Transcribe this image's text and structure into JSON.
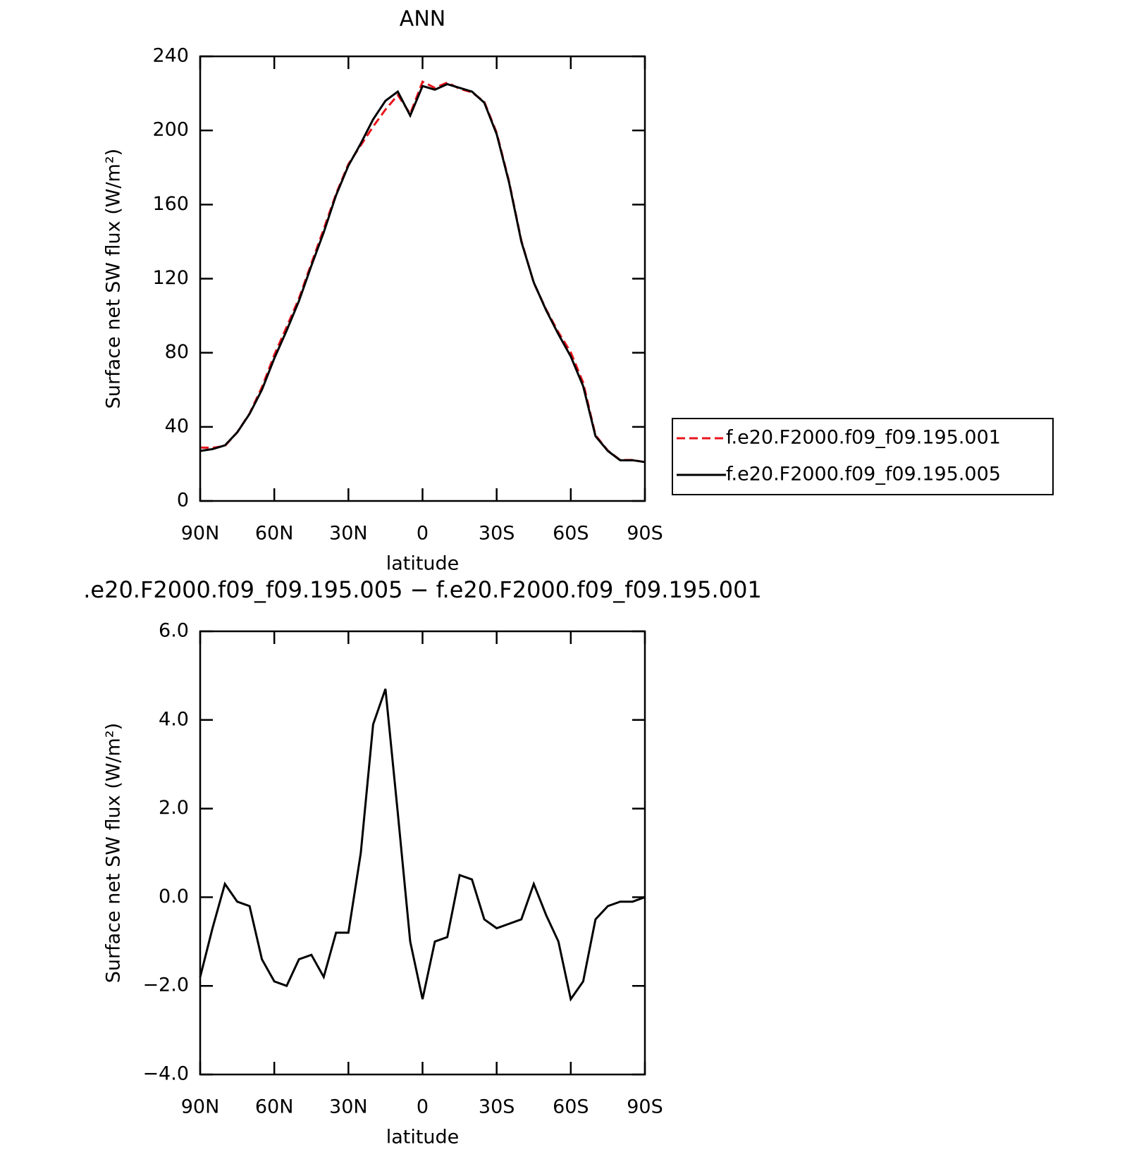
{
  "chart_data": [
    {
      "type": "line",
      "title": "ANN",
      "xlabel": "latitude",
      "ylabel": "Surface net SW flux (W/m²)",
      "x": [
        90,
        85,
        80,
        75,
        70,
        65,
        60,
        55,
        50,
        45,
        40,
        35,
        30,
        25,
        20,
        15,
        10,
        5,
        0,
        -5,
        -10,
        -15,
        -20,
        -25,
        -30,
        -35,
        -40,
        -45,
        -50,
        -55,
        -60,
        -65,
        -70,
        -75,
        -80,
        -85,
        -90
      ],
      "xlim": [
        90,
        -90
      ],
      "xticks": [
        {
          "value": 90,
          "label": "90N"
        },
        {
          "value": 60,
          "label": "60N"
        },
        {
          "value": 30,
          "label": "30N"
        },
        0,
        {
          "value": -30,
          "label": "30S"
        },
        {
          "value": -60,
          "label": "60S"
        },
        {
          "value": -90,
          "label": "90S"
        }
      ],
      "ylim": [
        0,
        240
      ],
      "yticks": [
        0,
        40,
        80,
        120,
        160,
        200,
        240
      ],
      "legend": "outside-right",
      "series": [
        {
          "name": "f.e20.F2000.f09_f09.195.001",
          "color": "#e8141c",
          "style": "dashed",
          "values": [
            28.8,
            28.7,
            29.7,
            37.1,
            47.2,
            61.4,
            78.9,
            94.0,
            109.4,
            128.3,
            146.8,
            165.8,
            181.8,
            192.0,
            202.1,
            211.3,
            219.1,
            209.0,
            226.3,
            223.0,
            225.9,
            222.5,
            220.6,
            215.5,
            198.7,
            172.6,
            140.5,
            117.7,
            103.4,
            91.0,
            80.3,
            63.9,
            35.5,
            27.2,
            22.1,
            22.1,
            21.0
          ]
        },
        {
          "name": "f.e20.F2000.f09_f09.195.005",
          "color": "#000000",
          "style": "solid",
          "values": [
            27,
            28,
            30,
            37,
            47,
            60,
            77,
            92,
            108,
            127,
            145,
            165,
            181,
            193,
            206,
            216,
            221,
            208,
            224,
            222,
            225,
            223,
            221,
            215,
            198,
            172,
            140,
            118,
            103,
            90,
            78,
            62,
            35,
            27,
            22,
            22,
            21
          ]
        }
      ]
    },
    {
      "type": "line",
      "title": ".e20.F2000.f09_f09.195.005 − f.e20.F2000.f09_f09.195.001",
      "xlabel": "latitude",
      "ylabel": "Surface net SW flux (W/m²)",
      "x": [
        90,
        85,
        80,
        75,
        70,
        65,
        60,
        55,
        50,
        45,
        40,
        35,
        30,
        25,
        20,
        15,
        10,
        5,
        0,
        -5,
        -10,
        -15,
        -20,
        -25,
        -30,
        -35,
        -40,
        -45,
        -50,
        -55,
        -60,
        -65,
        -70,
        -75,
        -80,
        -85,
        -90
      ],
      "xlim": [
        90,
        -90
      ],
      "xticks": [
        {
          "value": 90,
          "label": "90N"
        },
        {
          "value": 60,
          "label": "60N"
        },
        {
          "value": 30,
          "label": "30N"
        },
        0,
        {
          "value": -30,
          "label": "30S"
        },
        {
          "value": -60,
          "label": "60S"
        },
        {
          "value": -90,
          "label": "90S"
        }
      ],
      "ylim": [
        -4,
        6
      ],
      "yticks": [
        {
          "value": -4,
          "label": "−4.0"
        },
        {
          "value": -2,
          "label": "−2.0"
        },
        {
          "value": 0,
          "label": "0.0"
        },
        {
          "value": 2,
          "label": "2.0"
        },
        {
          "value": 4,
          "label": "4.0"
        },
        {
          "value": 6,
          "label": "6.0"
        }
      ],
      "series": [
        {
          "color": "#000000",
          "style": "solid",
          "values": [
            -1.8,
            -0.7,
            0.3,
            -0.1,
            -0.2,
            -1.4,
            -1.9,
            -2.0,
            -1.4,
            -1.3,
            -1.8,
            -0.8,
            -0.8,
            1.0,
            3.9,
            4.7,
            1.9,
            -1.0,
            -2.3,
            -1.0,
            -0.9,
            0.5,
            0.4,
            -0.5,
            -0.7,
            -0.6,
            -0.5,
            0.3,
            -0.4,
            -1.0,
            -2.3,
            -1.9,
            -0.5,
            -0.2,
            -0.1,
            -0.1,
            0.0
          ]
        }
      ]
    }
  ]
}
